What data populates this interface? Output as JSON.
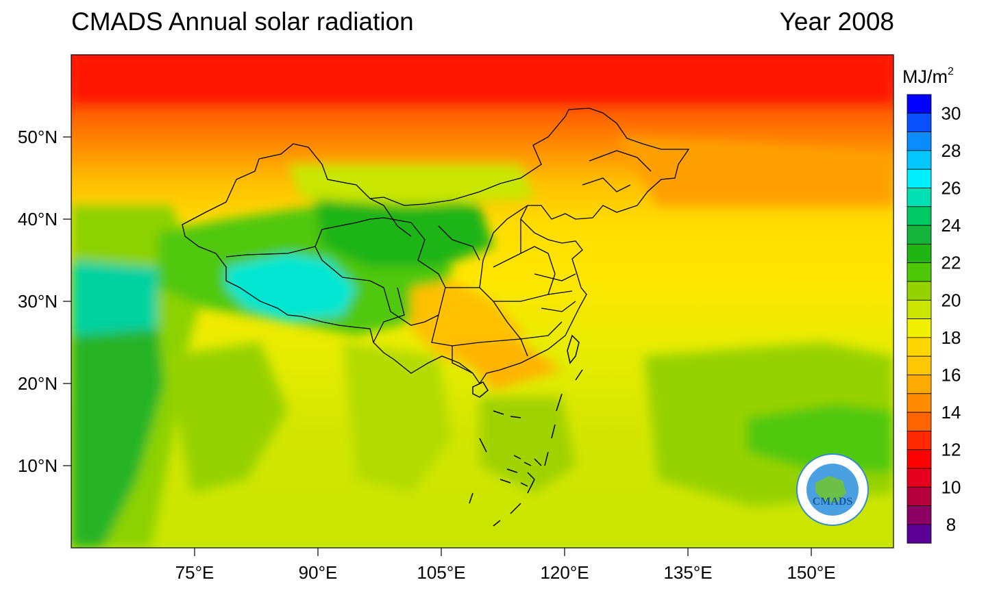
{
  "header": {
    "title": "CMADS Annual solar radiation",
    "year_label": "Year 2008"
  },
  "map": {
    "lat_ticks": [
      "10°N",
      "20°N",
      "30°N",
      "40°N",
      "50°N"
    ],
    "lon_ticks": [
      "75°E",
      "90°E",
      "105°E",
      "120°E",
      "135°E",
      "150°E"
    ]
  },
  "colorbar": {
    "unit": "MJ/m",
    "unit_sup": "2",
    "labels": [
      "30",
      "28",
      "26",
      "24",
      "22",
      "20",
      "18",
      "16",
      "14",
      "12",
      "10",
      "8"
    ],
    "colors": [
      "#0000ff",
      "#0a50ff",
      "#0a8cff",
      "#00c8ff",
      "#00f0ff",
      "#00e0b4",
      "#00c864",
      "#14b43c",
      "#1eb414",
      "#50c80a",
      "#96d200",
      "#c8e600",
      "#f0f000",
      "#ffd700",
      "#ffc800",
      "#ffaa00",
      "#ff8c00",
      "#ff6400",
      "#ff2800",
      "#ff0000",
      "#e6001e",
      "#b4003c",
      "#8c0064",
      "#5a0096"
    ]
  },
  "logo": {
    "text": "CMADS"
  }
}
